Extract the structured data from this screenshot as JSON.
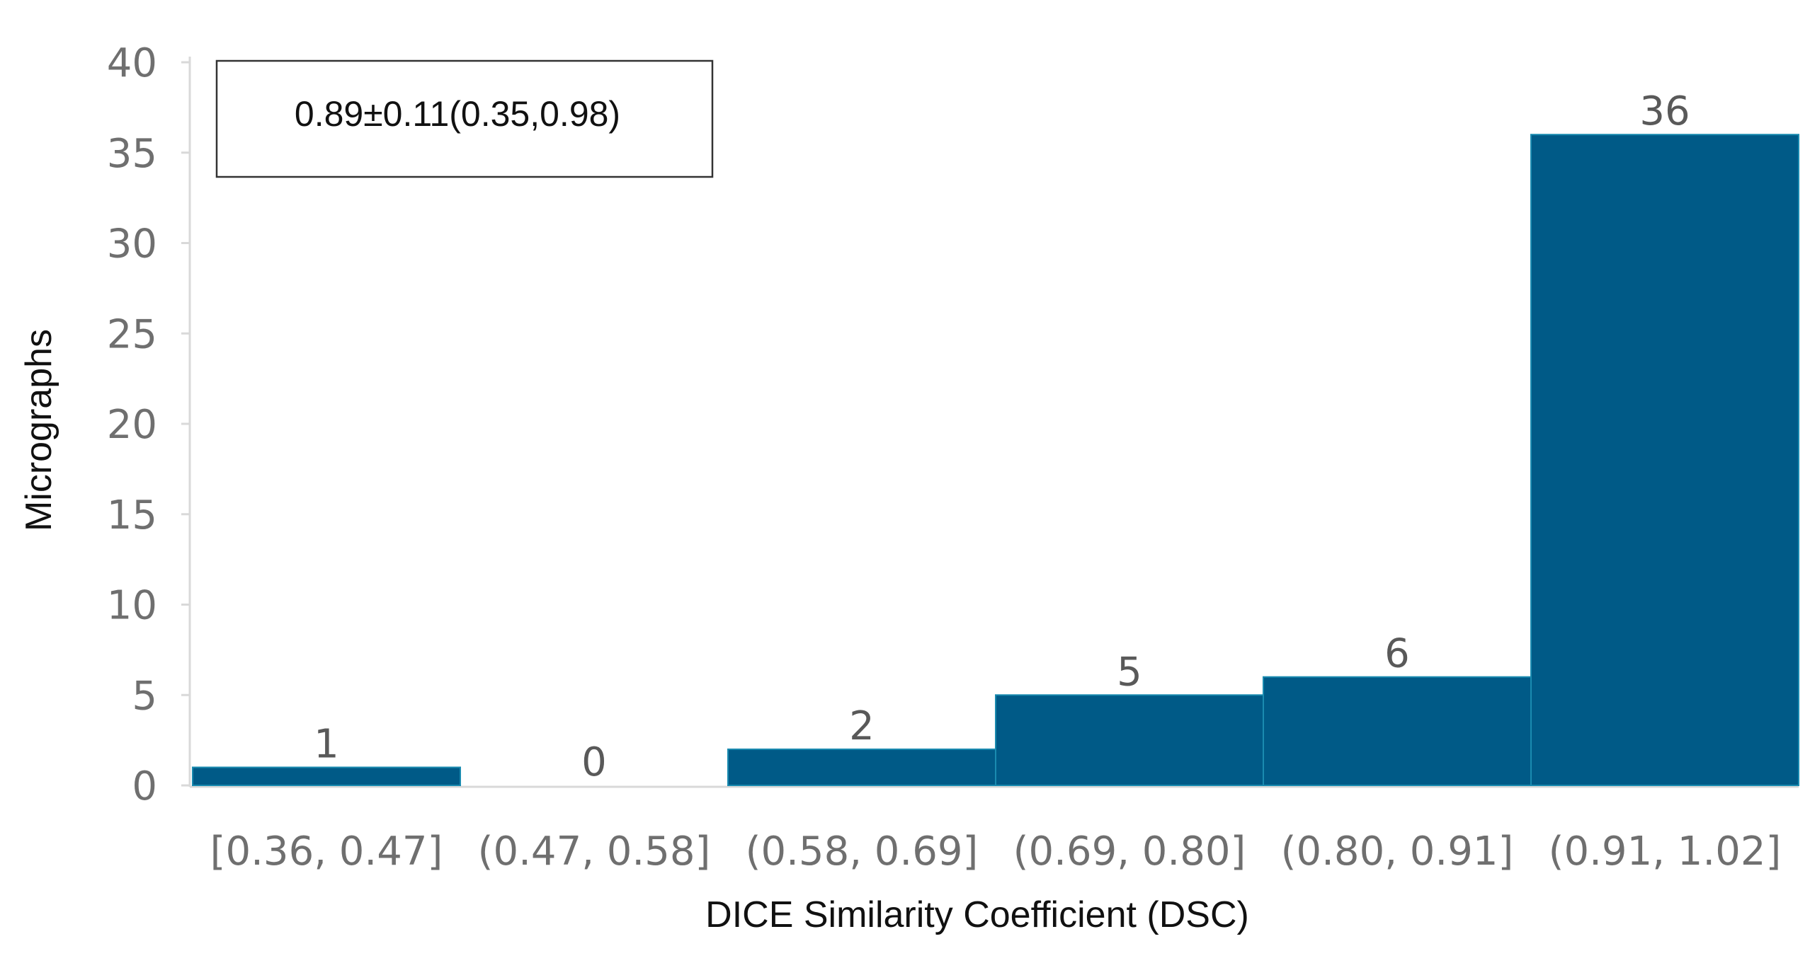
{
  "chart_data": {
    "type": "bar",
    "title": "",
    "categories": [
      "[0.36, 0.47]",
      "(0.47, 0.58]",
      "(0.58, 0.69]",
      "(0.69, 0.80]",
      "(0.80, 0.91]",
      "(0.91, 1.02]"
    ],
    "values": [
      1,
      0,
      2,
      5,
      6,
      36
    ],
    "data_labels": [
      "1",
      "0",
      "2",
      "5",
      "6",
      "36"
    ],
    "xlabel": "DICE Similarity Coefficient (DSC)",
    "ylabel": "Micrographs",
    "ylim": [
      0,
      40
    ],
    "yticks": [
      0,
      5,
      10,
      15,
      20,
      25,
      30,
      35,
      40
    ],
    "ytick_labels": [
      "0",
      "5",
      "10",
      "15",
      "20",
      "25",
      "30",
      "35",
      "40"
    ],
    "grid": false,
    "bar_color": "#005a87",
    "bar_edge_color": "#1a8bb0",
    "annotation": "0.89±0.11(0.35,0.98)"
  }
}
